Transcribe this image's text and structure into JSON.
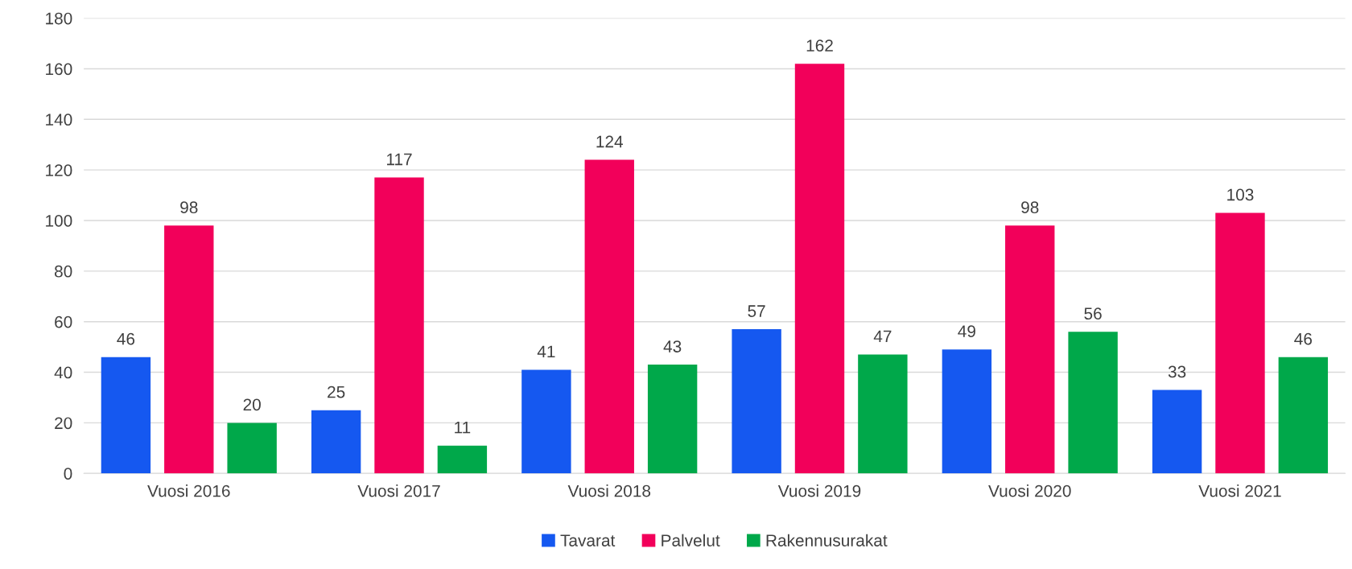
{
  "chart_data": {
    "type": "bar",
    "categories": [
      "Vuosi 2016",
      "Vuosi 2017",
      "Vuosi 2018",
      "Vuosi 2019",
      "Vuosi 2020",
      "Vuosi 2021"
    ],
    "series": [
      {
        "name": "Tavarat",
        "color": "#1558f0",
        "values": [
          46,
          25,
          41,
          57,
          49,
          33
        ]
      },
      {
        "name": "Palvelut",
        "color": "#f2005a",
        "values": [
          98,
          117,
          124,
          162,
          98,
          103
        ]
      },
      {
        "name": "Rakennusurakat",
        "color": "#00a84a",
        "values": [
          20,
          11,
          43,
          47,
          56,
          46
        ]
      }
    ],
    "ylim": [
      0,
      180
    ],
    "yticks": [
      0,
      20,
      40,
      60,
      80,
      100,
      120,
      140,
      160,
      180
    ],
    "grid": "y",
    "legend": "bottom",
    "data_labels": true
  }
}
